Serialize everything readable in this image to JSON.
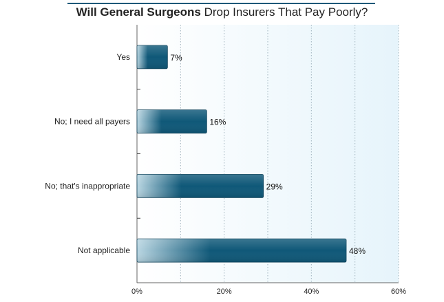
{
  "chart_data": {
    "type": "bar",
    "orientation": "horizontal",
    "title_bold": "Will General Surgeons",
    "title_rest": "Drop Insurers That Pay Poorly?",
    "categories": [
      "Yes",
      "No; I need all payers",
      "No; that's inappropriate",
      "Not applicable"
    ],
    "values": [
      7,
      16,
      29,
      48
    ],
    "value_labels": [
      "7%",
      "16%",
      "29%",
      "48%"
    ],
    "x_ticks": [
      0,
      10,
      20,
      30,
      40,
      50,
      60
    ],
    "x_tick_labels": [
      "0%",
      "",
      "20%",
      "",
      "40%",
      "",
      "60%"
    ],
    "xlim": [
      0,
      60
    ],
    "grid": true,
    "colors": {
      "bar_dark": "#0f5878",
      "bar_light": "#b9d6e2",
      "plot_bg_left": "#ffffff",
      "plot_bg_right": "#e6f4fb",
      "grid": "#9fb3bd",
      "title_rule": "#1d5878"
    }
  }
}
